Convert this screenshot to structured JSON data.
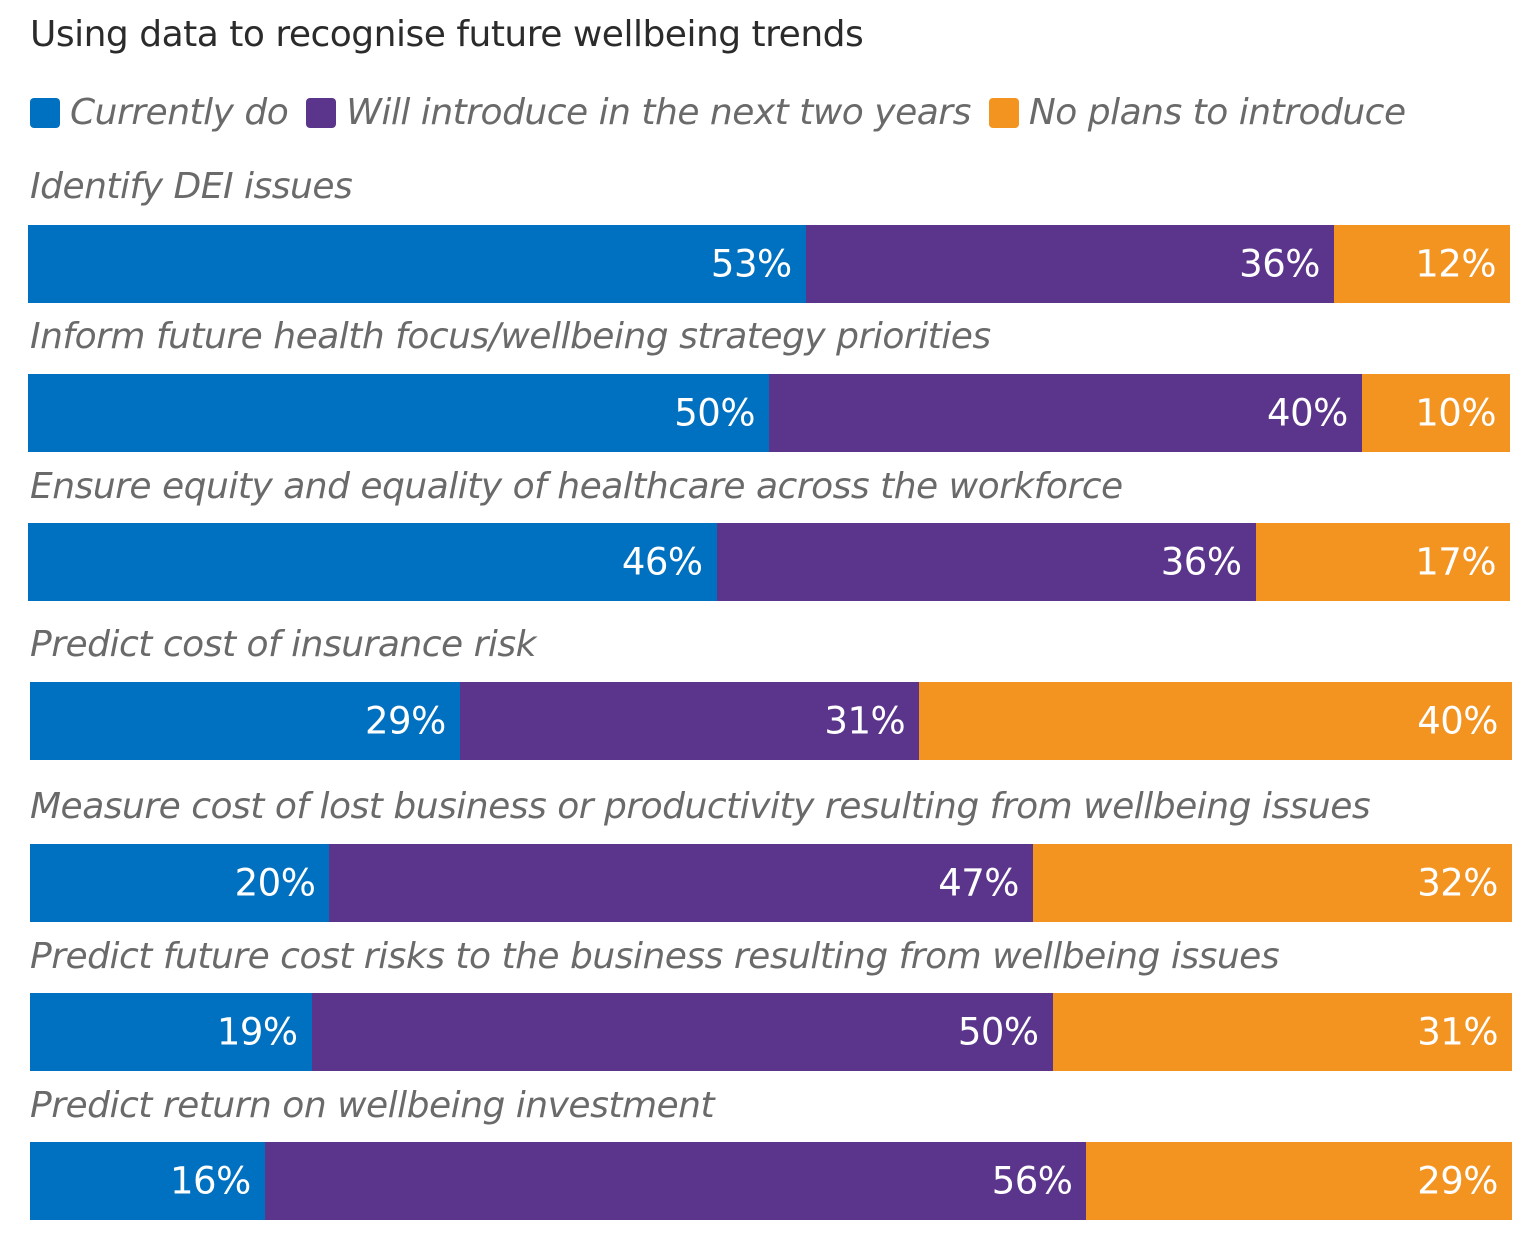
{
  "chart_data": {
    "type": "bar",
    "orientation": "horizontal",
    "stacked": true,
    "title": "Using data to recognise future wellbeing trends",
    "legend_position": "top",
    "grid": false,
    "series": [
      {
        "name": "Currently do",
        "color": "#0070c0",
        "values": [
          53,
          50,
          46,
          29,
          20,
          19,
          16
        ]
      },
      {
        "name": "Will introduce in the next two years",
        "color": "#5b358c",
        "values": [
          36,
          40,
          36,
          31,
          47,
          50,
          56
        ]
      },
      {
        "name": "No plans to introduce",
        "color": "#f39320",
        "values": [
          12,
          10,
          17,
          40,
          32,
          31,
          29
        ]
      }
    ],
    "categories": [
      "Identify DEI issues",
      "Inform future health focus/wellbeing strategy priorities",
      "Ensure equity and equality of healthcare across the workforce",
      "Predict cost of insurance risk",
      "Measure cost of lost business or productivity resulting from wellbeing issues",
      "Predict future cost risks to the business resulting from wellbeing issues",
      "Predict return on wellbeing investment"
    ],
    "value_suffix": "%"
  }
}
